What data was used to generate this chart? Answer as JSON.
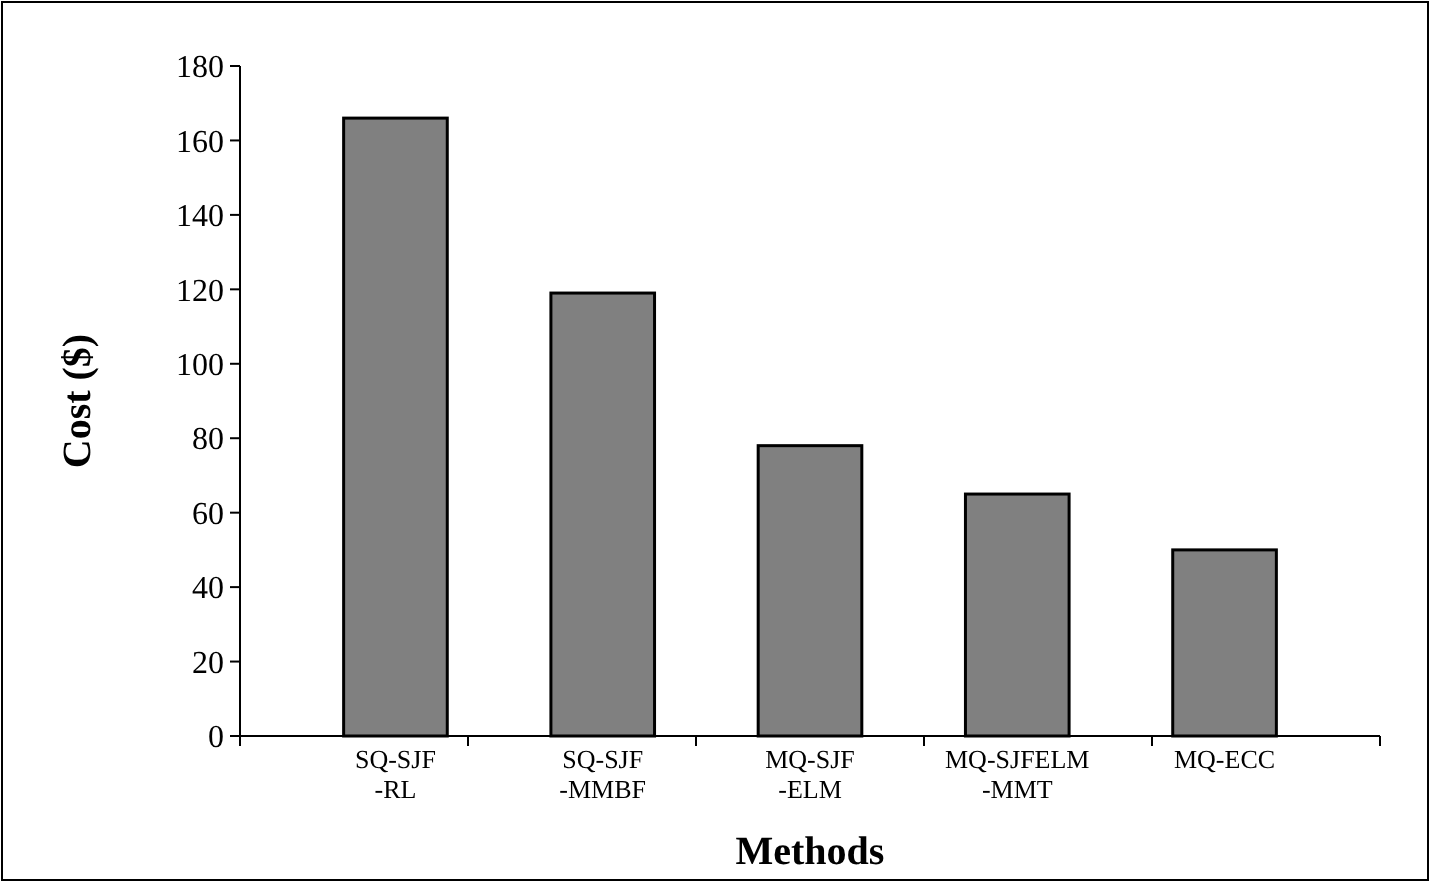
{
  "chart_data": {
    "type": "bar",
    "xlabel": "Methods",
    "ylabel": "Cost ($)",
    "categories": [
      "SQ-SJF\n-RL",
      "SQ-SJF\n-MMBF",
      "MQ-SJF\n-ELM",
      "MQ-SJFELM\n-MMT",
      "MQ-ECC"
    ],
    "values": [
      166,
      119,
      78,
      65,
      50
    ],
    "color": "#808080",
    "ylim": [
      0,
      180
    ],
    "yticks": [
      0,
      20,
      40,
      60,
      80,
      100,
      120,
      140,
      160,
      180
    ],
    "grid": false
  }
}
